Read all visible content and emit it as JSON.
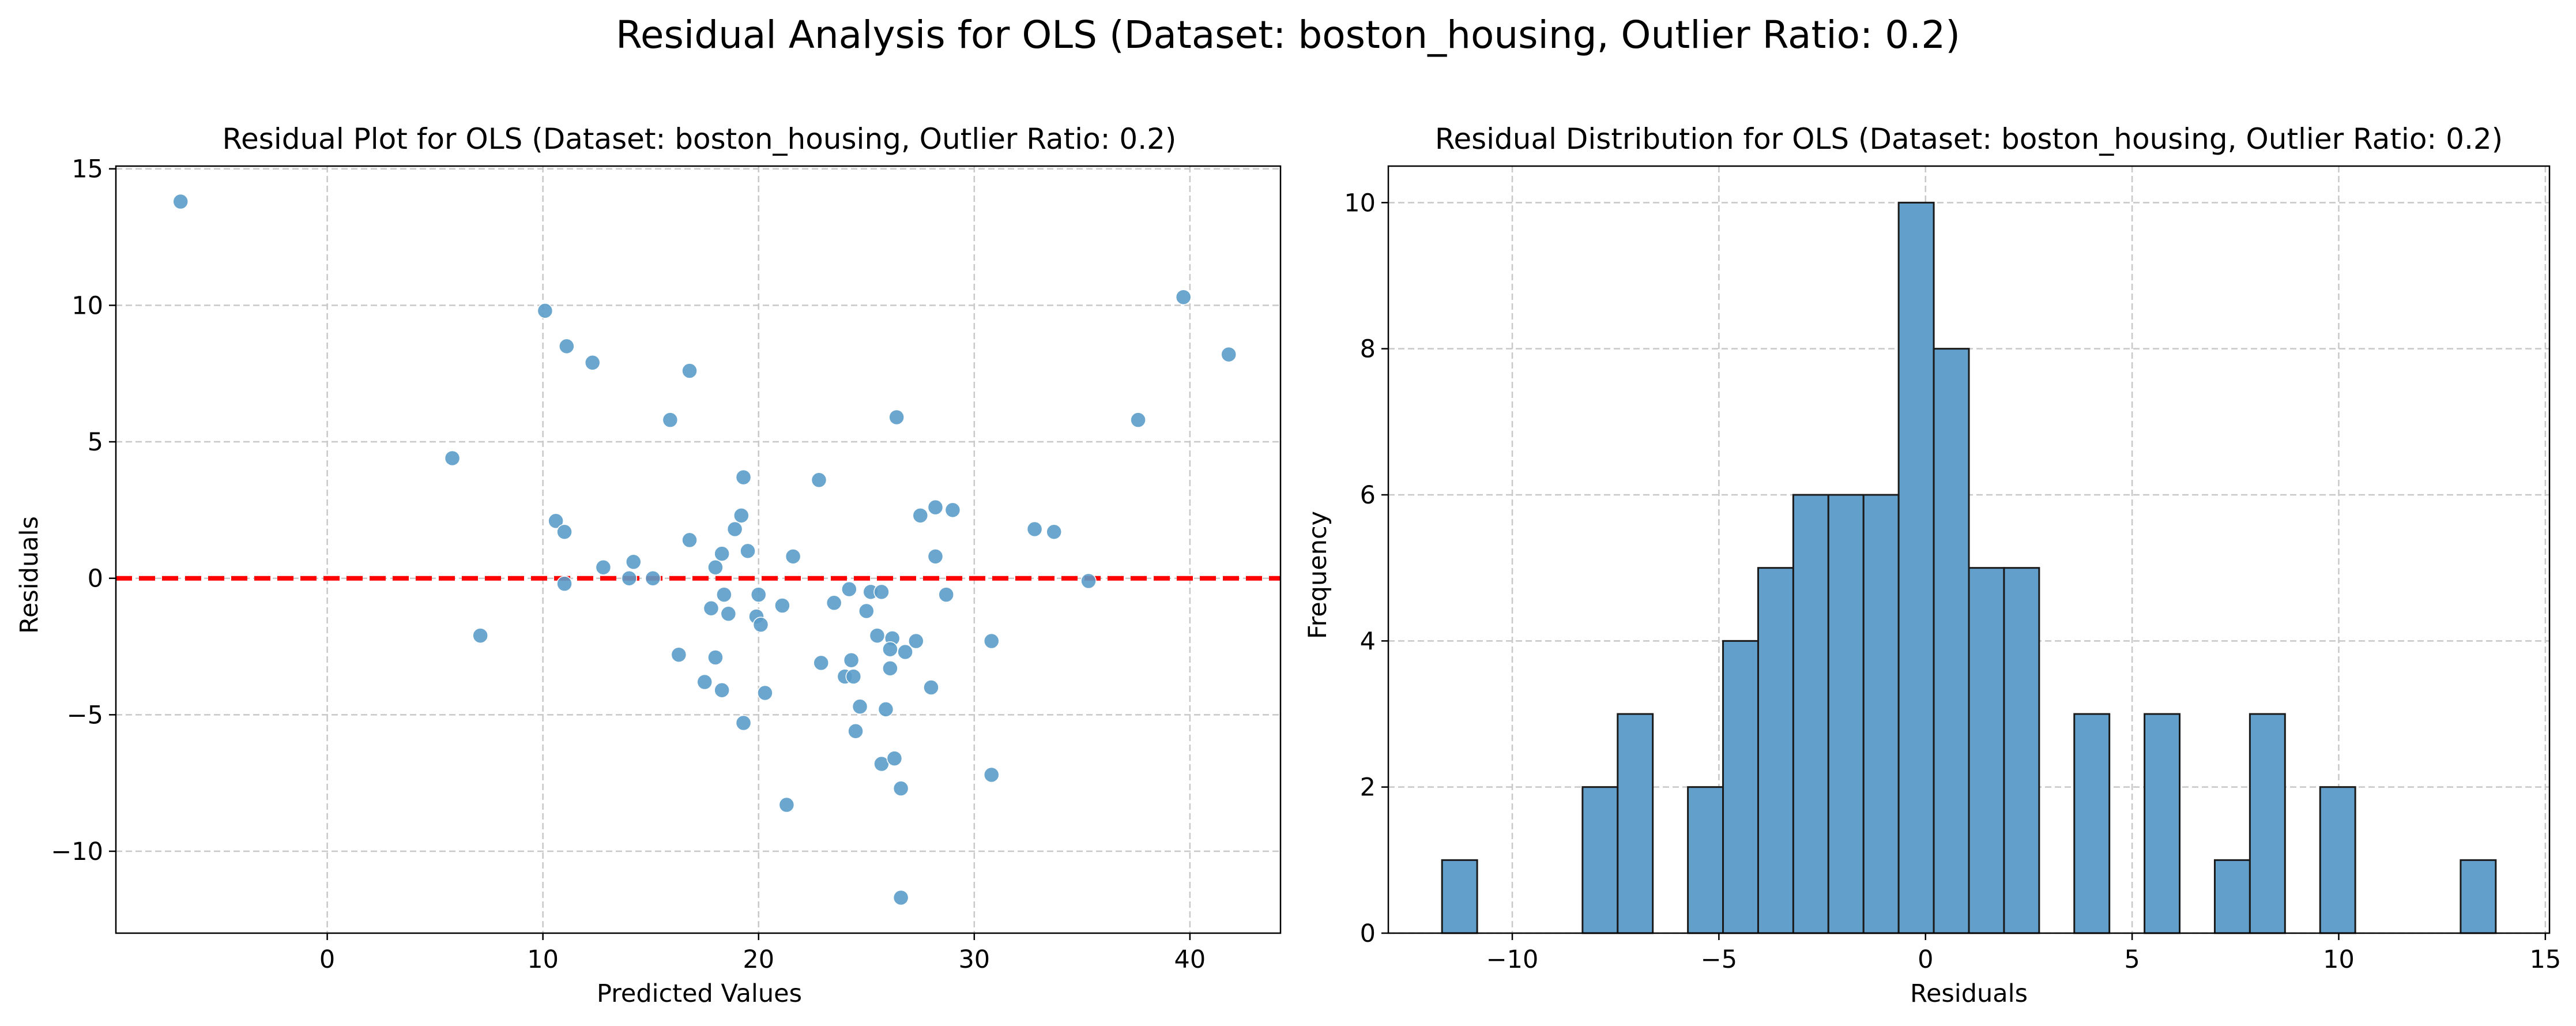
{
  "suptitle": "Residual Analysis for OLS (Dataset: boston_housing, Outlier Ratio: 0.2)",
  "colors": {
    "points": "#5b9cc9",
    "bars": "#62a0cb",
    "zero_line": "#ff0000",
    "grid": "#c8c8c8"
  },
  "chart_data": [
    {
      "type": "scatter",
      "title": "Residual Plot for OLS (Dataset: boston_housing, Outlier Ratio: 0.2)",
      "xlabel": "Predicted Values",
      "ylabel": "Residuals",
      "xlim": [
        -9.8,
        44.2
      ],
      "ylim": [
        -13.0,
        15.1
      ],
      "xticks": [
        0,
        10,
        20,
        30,
        40
      ],
      "yticks": [
        -10,
        -5,
        0,
        5,
        10,
        15
      ],
      "grid": true,
      "reference_line": {
        "y": 0,
        "style": "dashed",
        "color": "#ff0000"
      },
      "points": [
        [
          -6.8,
          13.8
        ],
        [
          5.8,
          4.4
        ],
        [
          7.1,
          -2.1
        ],
        [
          10.1,
          9.8
        ],
        [
          11.1,
          8.5
        ],
        [
          12.3,
          7.9
        ],
        [
          16.8,
          7.6
        ],
        [
          15.9,
          5.8
        ],
        [
          39.7,
          10.3
        ],
        [
          41.8,
          8.2
        ],
        [
          37.6,
          5.8
        ],
        [
          26.4,
          5.9
        ],
        [
          10.6,
          2.1
        ],
        [
          11.0,
          1.7
        ],
        [
          12.8,
          0.4
        ],
        [
          11.0,
          -0.2
        ],
        [
          14.2,
          0.6
        ],
        [
          14.0,
          0.0
        ],
        [
          15.1,
          0.0
        ],
        [
          16.8,
          1.4
        ],
        [
          19.3,
          3.7
        ],
        [
          19.2,
          2.3
        ],
        [
          18.9,
          1.8
        ],
        [
          18.3,
          0.9
        ],
        [
          18.0,
          0.4
        ],
        [
          19.5,
          1.0
        ],
        [
          21.6,
          0.8
        ],
        [
          22.8,
          3.6
        ],
        [
          18.4,
          -0.6
        ],
        [
          17.8,
          -1.1
        ],
        [
          18.6,
          -1.3
        ],
        [
          19.9,
          -1.4
        ],
        [
          20.1,
          -1.7
        ],
        [
          20.0,
          -0.6
        ],
        [
          21.1,
          -1.0
        ],
        [
          24.2,
          -0.4
        ],
        [
          25.2,
          -0.5
        ],
        [
          25.7,
          -0.5
        ],
        [
          23.5,
          -0.9
        ],
        [
          25.0,
          -1.2
        ],
        [
          27.5,
          2.3
        ],
        [
          28.2,
          2.6
        ],
        [
          29.0,
          2.5
        ],
        [
          28.2,
          0.8
        ],
        [
          28.7,
          -0.6
        ],
        [
          32.8,
          1.8
        ],
        [
          33.7,
          1.7
        ],
        [
          35.3,
          -0.1
        ],
        [
          16.3,
          -2.8
        ],
        [
          17.5,
          -3.8
        ],
        [
          18.0,
          -2.9
        ],
        [
          18.3,
          -4.1
        ],
        [
          19.3,
          -5.3
        ],
        [
          20.3,
          -4.2
        ],
        [
          22.9,
          -3.1
        ],
        [
          24.0,
          -3.6
        ],
        [
          24.3,
          -3.0
        ],
        [
          24.4,
          -3.6
        ],
        [
          24.7,
          -4.7
        ],
        [
          24.5,
          -5.6
        ],
        [
          25.5,
          -2.1
        ],
        [
          26.2,
          -2.2
        ],
        [
          26.8,
          -2.7
        ],
        [
          27.3,
          -2.3
        ],
        [
          26.1,
          -2.6
        ],
        [
          26.1,
          -3.3
        ],
        [
          25.9,
          -4.8
        ],
        [
          25.7,
          -6.8
        ],
        [
          26.3,
          -6.6
        ],
        [
          26.6,
          -7.7
        ],
        [
          21.3,
          -8.3
        ],
        [
          28.0,
          -4.0
        ],
        [
          30.8,
          -2.3
        ],
        [
          30.8,
          -7.2
        ],
        [
          26.6,
          -11.7
        ]
      ]
    },
    {
      "type": "bar",
      "subtype": "histogram",
      "title": "Residual Distribution for OLS (Dataset: boston_housing, Outlier Ratio: 0.2)",
      "xlabel": "Residuals",
      "ylabel": "Frequency",
      "xlim": [
        -13.0,
        15.1
      ],
      "ylim": [
        0,
        10.5
      ],
      "xticks": [
        -10,
        -5,
        0,
        5,
        10,
        15
      ],
      "yticks": [
        0,
        2,
        4,
        6,
        8,
        10
      ],
      "grid": true,
      "bin_start": -11.7,
      "bin_width": 0.85,
      "counts": [
        1,
        0,
        0,
        0,
        2,
        3,
        0,
        2,
        4,
        5,
        6,
        6,
        6,
        10,
        8,
        5,
        5,
        0,
        3,
        0,
        3,
        0,
        1,
        3,
        0,
        2,
        0,
        0,
        0,
        1
      ]
    }
  ]
}
